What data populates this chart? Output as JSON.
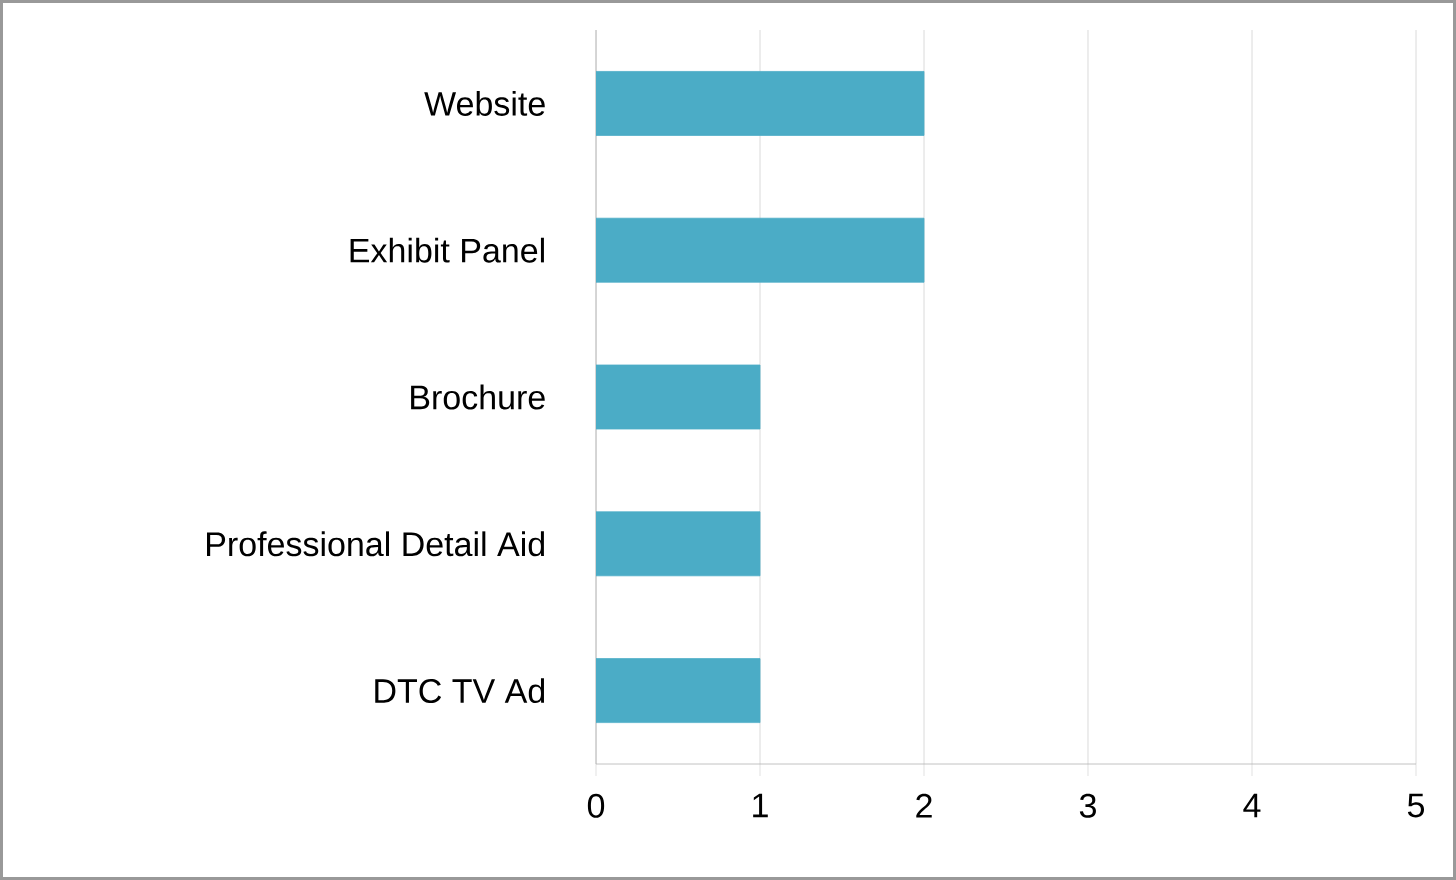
{
  "chart_data": {
    "type": "bar",
    "orientation": "horizontal",
    "categories": [
      "Website",
      "Exhibit Panel",
      "Brochure",
      "Professional Detail Aid",
      "DTC TV Ad"
    ],
    "values": [
      2,
      2,
      1,
      1,
      1
    ],
    "color": "#4bacc6",
    "xlim": [
      0,
      5
    ],
    "xticks": [
      0,
      1,
      2,
      3,
      4,
      5
    ],
    "grid": "x"
  }
}
